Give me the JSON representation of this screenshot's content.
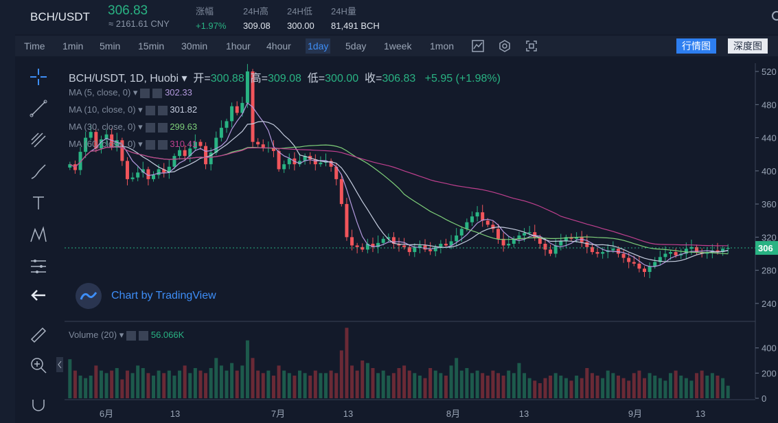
{
  "header": {
    "symbol": "BCH/USDT",
    "price": "306.83",
    "cny": "≈ 2161.61 CNY",
    "stats": [
      {
        "label": "涨幅",
        "value": "+1.97%",
        "up": true
      },
      {
        "label": "24H高",
        "value": "309.08"
      },
      {
        "label": "24H低",
        "value": "300.00"
      },
      {
        "label": "24H量",
        "value": "81,491 BCH"
      }
    ]
  },
  "toolbar": {
    "intervals": [
      "Time",
      "1min",
      "5min",
      "15min",
      "30min",
      "1hour",
      "4hour",
      "1day",
      "5day",
      "1week",
      "1mon"
    ],
    "active_interval": "1day",
    "tab_market": "行情图",
    "tab_depth": "深度图"
  },
  "legend": {
    "title": "BCH/USDT, 1D, Huobi",
    "open_label": "开=",
    "open": "300.88",
    "high_label": "高=",
    "high": "309.08",
    "low_label": "低=",
    "low": "300.00",
    "close_label": "收=",
    "close": "306.83",
    "change": "+5.95 (+1.98%)",
    "ma": [
      {
        "label": "MA (5, close, 0)",
        "value": "302.33",
        "color": "#b49adf"
      },
      {
        "label": "MA (10, close, 0)",
        "value": "301.82",
        "color": "#c6cee0"
      },
      {
        "label": "MA (30, close, 0)",
        "value": "299.63",
        "color": "#7fd07a"
      },
      {
        "label": "MA (60, close, 0)",
        "value": "310.41",
        "color": "#c0408f"
      }
    ],
    "volume_label": "Volume (20)",
    "volume_value": "56.066K",
    "brand": "Chart by TradingView"
  },
  "chart_data": {
    "type": "candlestick",
    "title": "BCH/USDT, 1D, Huobi",
    "x_ticks": [
      "6月",
      "13",
      "7月",
      "13",
      "8月",
      "13",
      "9月",
      "13"
    ],
    "y_ticks": [
      "520",
      "480",
      "440",
      "400",
      "360",
      "320",
      "280",
      "240"
    ],
    "ylim": [
      220,
      530
    ],
    "volume_ticks": [
      "400",
      "200",
      "0"
    ],
    "current_price_label": "306",
    "colors": {
      "up": "#29b383",
      "down": "#f1555b",
      "ma5": "#b49adf",
      "ma10": "#c6cee0",
      "ma30": "#7fd07a",
      "ma60": "#c0408f"
    },
    "closes": [
      408,
      401,
      423,
      440,
      447,
      427,
      438,
      444,
      428,
      437,
      412,
      390,
      392,
      398,
      402,
      390,
      395,
      402,
      398,
      405,
      418,
      425,
      418,
      427,
      435,
      430,
      408,
      422,
      440,
      452,
      460,
      478,
      470,
      482,
      520,
      435,
      432,
      428,
      428,
      424,
      402,
      408,
      415,
      408,
      412,
      418,
      414,
      408,
      410,
      412,
      405,
      390,
      360,
      320,
      310,
      308,
      305,
      312,
      308,
      313,
      318,
      320,
      312,
      310,
      308,
      302,
      308,
      310,
      305,
      303,
      308,
      312,
      310,
      315,
      322,
      330,
      338,
      345,
      350,
      340,
      335,
      330,
      318,
      310,
      312,
      318,
      322,
      325,
      326,
      320,
      312,
      305,
      300,
      310,
      315,
      320,
      318,
      320,
      314,
      308,
      302,
      300,
      302,
      304,
      306,
      300,
      295,
      290,
      288,
      282,
      278,
      285,
      290,
      296,
      300,
      302,
      298,
      300,
      306,
      308,
      302,
      300,
      302,
      304,
      302,
      306,
      307
    ],
    "volumes": [
      310,
      220,
      180,
      160,
      180,
      260,
      220,
      200,
      220,
      240,
      150,
      220,
      200,
      260,
      240,
      200,
      180,
      220,
      200,
      220,
      180,
      220,
      260,
      200,
      240,
      220,
      200,
      240,
      320,
      260,
      220,
      280,
      220,
      260,
      460,
      320,
      220,
      200,
      220,
      180,
      260,
      220,
      200,
      180,
      220,
      200,
      180,
      220,
      200,
      200,
      220,
      200,
      380,
      560,
      260,
      220,
      300,
      280,
      240,
      200,
      220,
      180,
      200,
      240,
      260,
      220,
      200,
      180,
      160,
      240,
      220,
      200,
      180,
      260,
      320,
      220,
      240,
      200,
      220,
      200,
      180,
      220,
      200,
      180,
      220,
      200,
      280,
      200,
      160,
      140,
      120,
      160,
      180,
      200,
      180,
      160,
      140,
      180,
      160,
      240,
      200,
      180,
      160,
      220,
      200,
      180,
      160,
      140,
      200,
      220,
      160,
      200,
      180,
      160,
      140,
      200,
      220,
      180,
      160,
      140,
      200,
      220,
      180,
      200,
      180,
      160,
      100
    ]
  }
}
